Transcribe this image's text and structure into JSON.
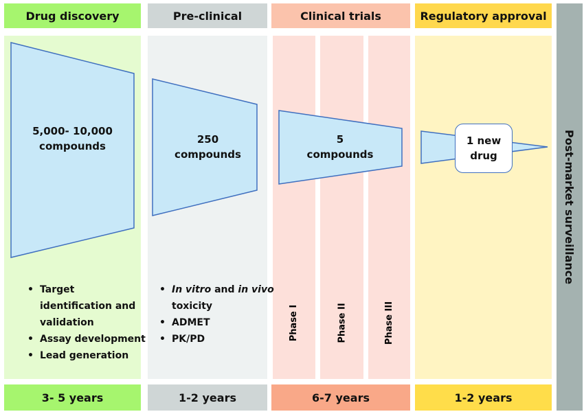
{
  "stages": [
    {
      "title": "Drug discovery",
      "duration": "3- 5 years",
      "compounds": "5,000- 10,000 compounds",
      "header_color": "#a6f56e",
      "body_color": "#e5fbd0"
    },
    {
      "title": "Pre-clinical",
      "duration": "1-2 years",
      "compounds": "250 compounds",
      "header_color": "#cfd6d6",
      "body_color": "#eef2f2"
    },
    {
      "title": "Clinical trials",
      "duration": "6-7 years",
      "compounds": "5 compounds",
      "header_color": "#fbc3ac",
      "body_color": "#fde0da",
      "footer_color": "#f9a888"
    },
    {
      "title": "Regulatory approval",
      "duration": "1-2 years",
      "compounds": "1 new drug",
      "header_color": "#ffd84d",
      "body_color": "#fff4c2"
    }
  ],
  "discovery_steps": [
    "Target identification and validation",
    "Assay development",
    "Lead generation"
  ],
  "preclinical_steps": {
    "step1_a": "In vitro",
    "step1_b": " and ",
    "step1_c": "in vivo",
    "step1_d": " toxicity",
    "step2": "ADMET",
    "step3": "PK/PD"
  },
  "phases": [
    "Phase I",
    "Phase II",
    "Phase III"
  ],
  "post_market": "Post-market surveillance",
  "funnel_fill": "#c8e8f8",
  "funnel_stroke": "#3f6fbf"
}
